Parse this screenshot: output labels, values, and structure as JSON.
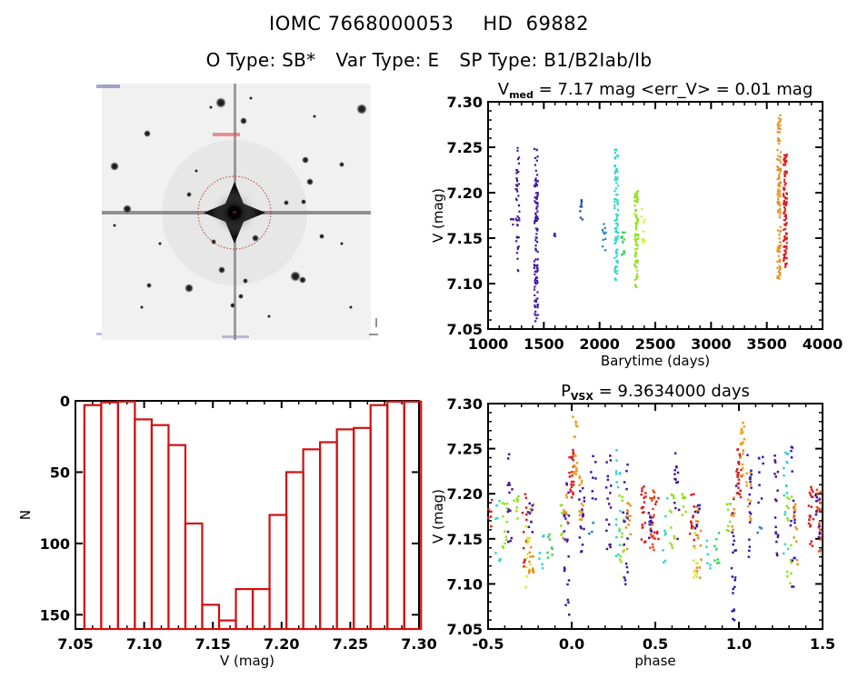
{
  "header": {
    "star_id": "IOMC 7668000053",
    "hd_id": "HD  69882",
    "otype": "O Type: SB*",
    "vartype": "Var Type: E",
    "sptype": "SP Type: B1/B2Iab/Ib"
  },
  "finder_chart": {
    "description": "Inverted grayscale sky image centered on target star with red dotted aperture circle",
    "colors": {
      "circle": "#d03030",
      "labels": "#2020a0"
    }
  },
  "chart_data": [
    {
      "type": "scatter",
      "name": "light-curve",
      "title_prefix": "V",
      "title_sub": "med",
      "title_rest": " = 7.17 mag <err_V> = 0.01 mag",
      "xlabel": "Barytime (days)",
      "ylabel": "V (mag)",
      "xlim": [
        1000,
        4000
      ],
      "ylim": [
        7.3,
        7.05
      ],
      "xticks": [
        "1000",
        "1500",
        "2000",
        "2500",
        "3000",
        "3500",
        "4000"
      ],
      "yticks": [
        "7.05",
        "7.10",
        "7.15",
        "7.20",
        "7.25",
        "7.30"
      ],
      "ytick_values": [
        7.05,
        7.1,
        7.15,
        7.2,
        7.25,
        7.3
      ],
      "xtick_values": [
        1000,
        1500,
        2000,
        2500,
        3000,
        3500,
        4000
      ],
      "seasons": [
        {
          "x": 1210,
          "ymin": 7.163,
          "ymax": 7.175,
          "n": 4,
          "color": "#4b1a8a"
        },
        {
          "x": 1265,
          "ymin": 7.112,
          "ymax": 7.25,
          "n": 45,
          "color": "#4b1a8a"
        },
        {
          "x": 1430,
          "ymin": 7.057,
          "ymax": 7.253,
          "n": 110,
          "color": "#3a1aa8"
        },
        {
          "x": 1590,
          "ymin": 7.145,
          "ymax": 7.155,
          "n": 4,
          "color": "#2a2ab0"
        },
        {
          "x": 1840,
          "ymin": 7.17,
          "ymax": 7.192,
          "n": 8,
          "color": "#1e3aa0"
        },
        {
          "x": 2040,
          "ymin": 7.136,
          "ymax": 7.168,
          "n": 10,
          "color": "#2080c8"
        },
        {
          "x": 2150,
          "ymin": 7.103,
          "ymax": 7.253,
          "n": 90,
          "color": "#30d8c8"
        },
        {
          "x": 2210,
          "ymin": 7.126,
          "ymax": 7.16,
          "n": 14,
          "color": "#40d060"
        },
        {
          "x": 2330,
          "ymin": 7.096,
          "ymax": 7.203,
          "n": 80,
          "color": "#90e020"
        },
        {
          "x": 2390,
          "ymin": 7.145,
          "ymax": 7.187,
          "n": 10,
          "color": "#d8e830"
        },
        {
          "x": 3610,
          "ymin": 7.104,
          "ymax": 7.286,
          "n": 120,
          "color": "#e89020"
        },
        {
          "x": 3665,
          "ymin": 7.118,
          "ymax": 7.246,
          "n": 110,
          "color": "#d82020"
        }
      ]
    },
    {
      "type": "bar",
      "name": "histogram",
      "xlabel": "V (mag)",
      "ylabel": "N",
      "xlim": [
        7.05,
        7.3
      ],
      "ylim": [
        0,
        160
      ],
      "xticks": [
        "7.05",
        "7.10",
        "7.15",
        "7.20",
        "7.25",
        "7.30"
      ],
      "xtick_values": [
        7.05,
        7.1,
        7.15,
        7.2,
        7.25,
        7.3
      ],
      "yticks": [
        "0",
        "50",
        "100",
        "150"
      ],
      "ytick_values": [
        0,
        50,
        100,
        150
      ],
      "bin_start": 7.0565,
      "bin_width": 0.01225,
      "values": [
        3,
        1,
        0.5,
        13,
        17,
        31,
        86,
        143,
        154,
        132,
        132,
        80,
        50,
        34,
        29,
        20,
        19,
        3,
        0.5,
        0.5
      ],
      "color": "#d01010"
    },
    {
      "type": "scatter",
      "name": "phase-curve",
      "title_prefix": "P",
      "title_sub": "VSX",
      "title_rest": " = 9.3634000 days",
      "xlabel": "phase",
      "ylabel": "V (mag)",
      "xlim": [
        -0.5,
        1.5
      ],
      "ylim": [
        7.3,
        7.05
      ],
      "xticks": [
        "-0.5",
        "0.0",
        "0.5",
        "1.0",
        "1.5"
      ],
      "xtick_values": [
        -0.5,
        0.0,
        0.5,
        1.0,
        1.5
      ],
      "yticks": [
        "7.05",
        "7.10",
        "7.15",
        "7.20",
        "7.25",
        "7.30"
      ],
      "ytick_values": [
        7.05,
        7.1,
        7.15,
        7.2,
        7.25,
        7.3
      ],
      "period_days": 9.3634,
      "clusters": [
        {
          "x": -0.49,
          "ymin": 7.148,
          "ymax": 7.2,
          "n": 8,
          "color": "#d82020"
        },
        {
          "x": -0.44,
          "ymin": 7.123,
          "ymax": 7.2,
          "n": 8,
          "color": "#30d8c8"
        },
        {
          "x": -0.4,
          "ymin": 7.132,
          "ymax": 7.2,
          "n": 12,
          "color": "#90e020"
        },
        {
          "x": -0.37,
          "ymin": 7.138,
          "ymax": 7.245,
          "n": 14,
          "color": "#4b1a8a"
        },
        {
          "x": -0.33,
          "ymin": 7.168,
          "ymax": 7.203,
          "n": 8,
          "color": "#90e020"
        },
        {
          "x": -0.28,
          "ymin": 7.118,
          "ymax": 7.2,
          "n": 14,
          "color": "#d82020"
        },
        {
          "x": -0.26,
          "ymin": 7.096,
          "ymax": 7.165,
          "n": 14,
          "color": "#d8e830"
        },
        {
          "x": -0.24,
          "ymin": 7.103,
          "ymax": 7.19,
          "n": 16,
          "color": "#e89020"
        },
        {
          "x": -0.25,
          "ymin": 7.15,
          "ymax": 7.195,
          "n": 8,
          "color": "#3a1aa8"
        },
        {
          "x": -0.18,
          "ymin": 7.115,
          "ymax": 7.155,
          "n": 6,
          "color": "#30d8c8"
        },
        {
          "x": -0.13,
          "ymin": 7.122,
          "ymax": 7.16,
          "n": 8,
          "color": "#40d060"
        },
        {
          "x": -0.06,
          "ymin": 7.148,
          "ymax": 7.19,
          "n": 8,
          "color": "#90e020"
        },
        {
          "x": -0.03,
          "ymin": 7.058,
          "ymax": 7.22,
          "n": 22,
          "color": "#3a1aa8"
        },
        {
          "x": -0.04,
          "ymin": 7.15,
          "ymax": 7.2,
          "n": 8,
          "color": "#e89020"
        },
        {
          "x": 0.0,
          "ymin": 7.195,
          "ymax": 7.25,
          "n": 24,
          "color": "#d82020"
        },
        {
          "x": 0.02,
          "ymin": 7.22,
          "ymax": 7.286,
          "n": 20,
          "color": "#e8a020"
        },
        {
          "x": 0.06,
          "ymin": 7.165,
          "ymax": 7.225,
          "n": 14,
          "color": "#e8a020"
        },
        {
          "x": 0.06,
          "ymin": 7.13,
          "ymax": 7.25,
          "n": 16,
          "color": "#3a1aa8"
        },
        {
          "x": 0.12,
          "ymin": 7.155,
          "ymax": 7.168,
          "n": 3,
          "color": "#2080c8"
        },
        {
          "x": 0.13,
          "ymin": 7.19,
          "ymax": 7.25,
          "n": 8,
          "color": "#3a1aa8"
        },
        {
          "x": 0.22,
          "ymin": 7.13,
          "ymax": 7.248,
          "n": 18,
          "color": "#4b1a8a"
        },
        {
          "x": 0.28,
          "ymin": 7.123,
          "ymax": 7.25,
          "n": 16,
          "color": "#30d8c8"
        },
        {
          "x": 0.3,
          "ymin": 7.1,
          "ymax": 7.2,
          "n": 14,
          "color": "#90e020"
        },
        {
          "x": 0.32,
          "ymin": 7.085,
          "ymax": 7.255,
          "n": 18,
          "color": "#3a1aa8"
        },
        {
          "x": 0.34,
          "ymin": 7.12,
          "ymax": 7.19,
          "n": 12,
          "color": "#e89020"
        },
        {
          "x": 0.43,
          "ymin": 7.14,
          "ymax": 7.21,
          "n": 20,
          "color": "#d82020"
        },
        {
          "x": 0.48,
          "ymin": 7.135,
          "ymax": 7.205,
          "n": 26,
          "color": "#e85020"
        },
        {
          "x": 0.47,
          "ymin": 7.15,
          "ymax": 7.2,
          "n": 10,
          "color": "#3a1aa8"
        }
      ],
      "repeat_shift": 1.0
    }
  ]
}
